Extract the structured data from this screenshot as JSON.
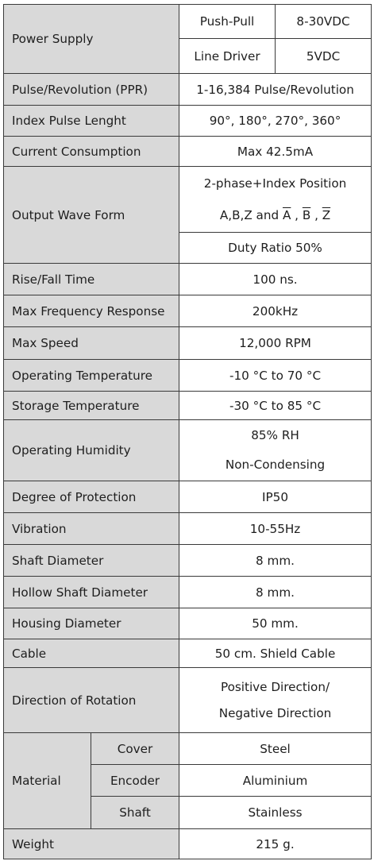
{
  "rows": {
    "power_supply": {
      "label": "Power Supply",
      "push_pull": "Push-Pull",
      "push_pull_value": "8-30VDC",
      "line_driver": "Line Driver",
      "line_driver_value": "5VDC"
    },
    "ppr": {
      "label": "Pulse/Revolution (PPR)",
      "value": "1-16,384 Pulse/Revolution"
    },
    "index_pulse": {
      "label": "Index Pulse Lenght",
      "value": "90°, 180°, 270°, 360°"
    },
    "current": {
      "label": "Current Consumption",
      "value": "Max 42.5mA"
    },
    "output_wave": {
      "label": "Output Wave Form",
      "line1": "2-phase+Index Position",
      "line2_prefix": "A,B,Z and ",
      "a_bar": "A",
      "sep1": " , ",
      "b_bar": "B",
      "sep2": " , ",
      "z_bar": "Z",
      "duty": "Duty Ratio 50%"
    },
    "rise_fall": {
      "label": "Rise/Fall Time",
      "value": "100 ns."
    },
    "max_freq": {
      "label": "Max Frequency Response",
      "value": "200kHz"
    },
    "max_speed": {
      "label": "Max Speed",
      "value": "12,000 RPM"
    },
    "op_temp": {
      "label": "Operating Temperature",
      "value": "-10 °C to 70 °C"
    },
    "storage_temp": {
      "label": "Storage Temperature",
      "value": "-30 °C to 85 °C"
    },
    "humidity": {
      "label": "Operating Humidity",
      "line1": "85% RH",
      "line2": "Non-Condensing"
    },
    "protection": {
      "label": "Degree of Protection",
      "value": "IP50"
    },
    "vibration": {
      "label": "Vibration",
      "value": "10-55Hz"
    },
    "shaft_dia": {
      "label": "Shaft Diameter",
      "value": "8 mm."
    },
    "hollow_shaft": {
      "label": "Hollow Shaft Diameter",
      "value": "8 mm."
    },
    "housing": {
      "label": "Housing Diameter",
      "value": "50 mm."
    },
    "cable": {
      "label": "Cable",
      "value": "50 cm. Shield Cable"
    },
    "rotation": {
      "label": "Direction of Rotation",
      "line1": "Positive Direction/",
      "line2": "Negative Direction"
    },
    "material": {
      "label": "Material",
      "cover": "Cover",
      "cover_value": "Steel",
      "encoder": "Encoder",
      "encoder_value": "Aluminium",
      "shaft": "Shaft",
      "shaft_value": "Stainless"
    },
    "weight": {
      "label": "Weight",
      "value": "215 g."
    }
  }
}
